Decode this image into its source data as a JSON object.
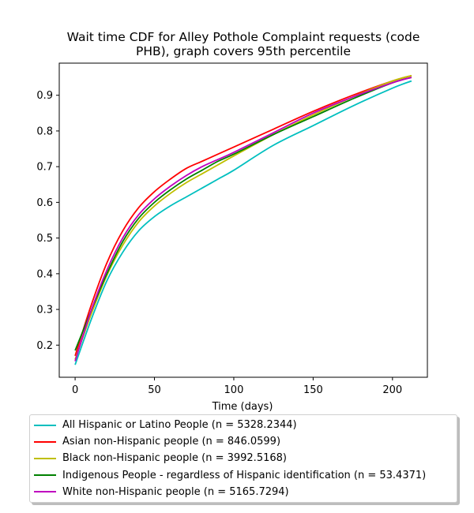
{
  "chart_data": {
    "type": "line",
    "title": [
      "Wait time CDF for Alley Pothole Complaint  requests (code",
      "PHB), graph covers 95th percentile"
    ],
    "xlabel": "Time (days)",
    "ylabel": "",
    "xlim": [
      -10,
      222
    ],
    "ylim": [
      0.11,
      0.99
    ],
    "xticks": [
      0,
      50,
      100,
      150,
      200
    ],
    "yticks": [
      0.2,
      0.3,
      0.4,
      0.5,
      0.6,
      0.7,
      0.8,
      0.9
    ],
    "xtick_labels": [
      "0",
      "50",
      "100",
      "150",
      "200"
    ],
    "ytick_labels": [
      "0.2",
      "0.3",
      "0.4",
      "0.5",
      "0.6",
      "0.7",
      "0.8",
      "0.9"
    ],
    "grid": false,
    "legend_placement": "below",
    "series": [
      {
        "name": "All Hispanic or Latino People (n = 5328.2344)",
        "color": "#00bfbf",
        "x": [
          0,
          10,
          20,
          30,
          40,
          50,
          60,
          70,
          80,
          90,
          100,
          125,
          150,
          175,
          200,
          212
        ],
        "y": [
          0.145,
          0.27,
          0.38,
          0.46,
          0.52,
          0.56,
          0.59,
          0.615,
          0.64,
          0.665,
          0.69,
          0.76,
          0.815,
          0.87,
          0.92,
          0.94
        ]
      },
      {
        "name": "Asian non-Hispanic people (n = 846.0599)",
        "color": "#ff0000",
        "x": [
          0,
          10,
          20,
          30,
          40,
          50,
          60,
          70,
          80,
          90,
          100,
          125,
          150,
          175,
          200,
          212
        ],
        "y": [
          0.17,
          0.31,
          0.43,
          0.52,
          0.585,
          0.63,
          0.665,
          0.695,
          0.715,
          0.735,
          0.755,
          0.805,
          0.855,
          0.9,
          0.94,
          0.955
        ]
      },
      {
        "name": "Black non-Hispanic people (n = 3992.5168)",
        "color": "#bfbf00",
        "x": [
          0,
          10,
          20,
          30,
          40,
          50,
          60,
          70,
          80,
          90,
          100,
          125,
          150,
          175,
          200,
          212
        ],
        "y": [
          0.16,
          0.285,
          0.395,
          0.48,
          0.545,
          0.59,
          0.625,
          0.655,
          0.68,
          0.705,
          0.73,
          0.79,
          0.845,
          0.895,
          0.94,
          0.955
        ]
      },
      {
        "name": "Indigenous People - regardless of Hispanic identification (n = 53.4371)",
        "color": "#008000",
        "x": [
          0,
          10,
          20,
          30,
          40,
          50,
          60,
          70,
          80,
          90,
          100,
          125,
          150,
          175,
          200,
          212
        ],
        "y": [
          0.185,
          0.295,
          0.4,
          0.49,
          0.555,
          0.6,
          0.635,
          0.665,
          0.69,
          0.715,
          0.735,
          0.79,
          0.84,
          0.89,
          0.935,
          0.95
        ]
      },
      {
        "name": "White non-Hispanic people (n = 5165.7294)",
        "color": "#bf00bf",
        "x": [
          0,
          10,
          20,
          30,
          40,
          50,
          60,
          70,
          80,
          90,
          100,
          125,
          150,
          175,
          200,
          212
        ],
        "y": [
          0.155,
          0.295,
          0.41,
          0.5,
          0.565,
          0.61,
          0.645,
          0.675,
          0.7,
          0.72,
          0.74,
          0.795,
          0.85,
          0.895,
          0.935,
          0.95
        ]
      }
    ]
  }
}
